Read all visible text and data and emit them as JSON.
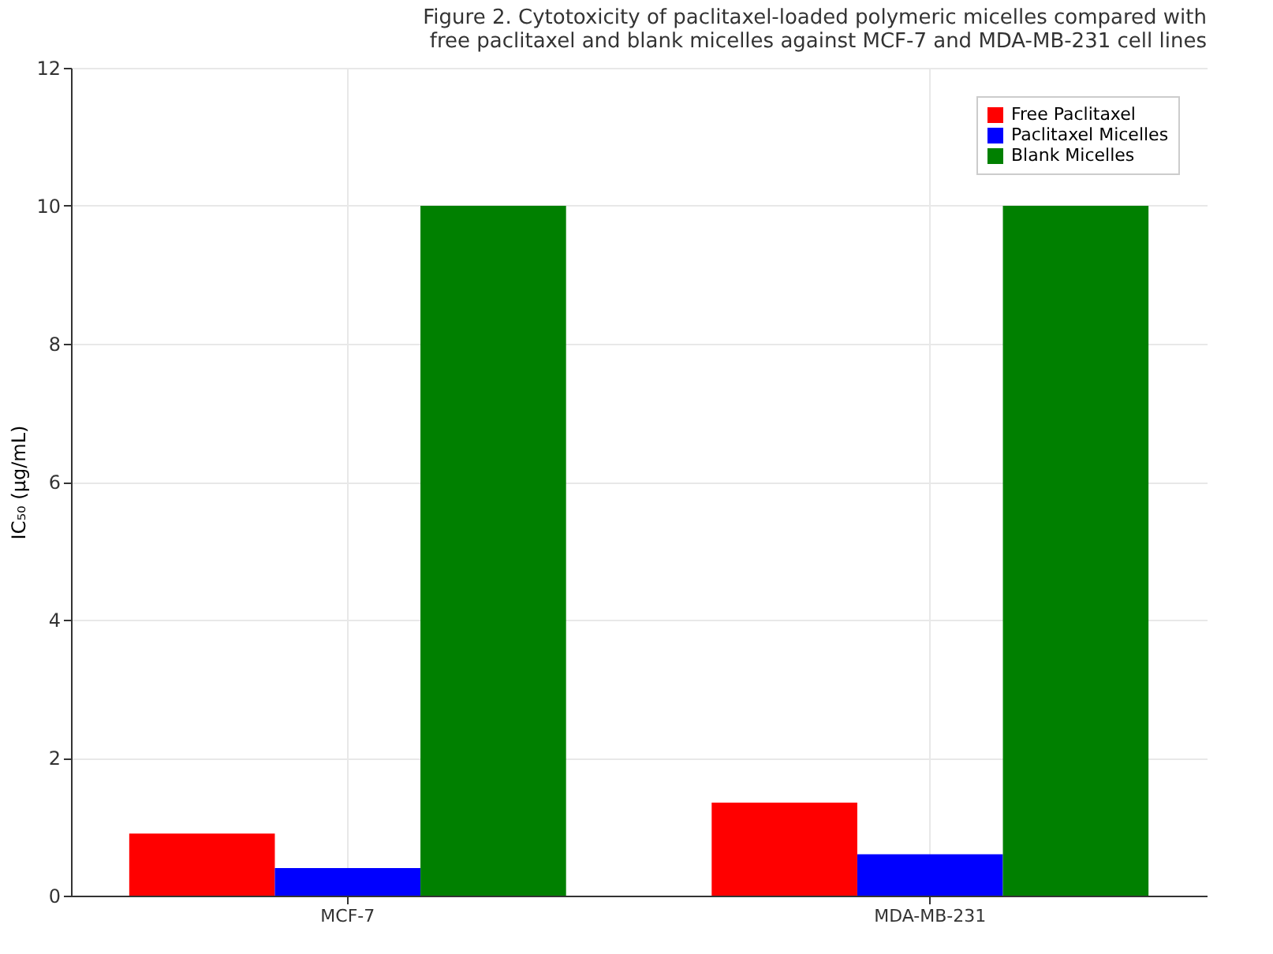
{
  "chart_data": {
    "type": "bar",
    "title": [
      "Figure 2. Cytotoxicity of paclitaxel-loaded polymeric micelles compared with",
      "free paclitaxel and blank micelles against MCF-7 and MDA-MB-231 cell lines"
    ],
    "ylabel": "IC₅₀ (µg/mL)",
    "categories": [
      "MCF-7",
      "MDA-MB-231"
    ],
    "series": [
      {
        "name": "Free Paclitaxel",
        "color": "#ff0000",
        "values": [
          0.9,
          1.35
        ]
      },
      {
        "name": "Paclitaxel Micelles",
        "color": "#0000ff",
        "values": [
          0.4,
          0.6
        ]
      },
      {
        "name": "Blank Micelles",
        "color": "#008000",
        "values": [
          10,
          10
        ]
      }
    ],
    "ylim": [
      0,
      12
    ],
    "yticks": [
      0,
      2,
      4,
      6,
      8,
      10,
      12
    ],
    "grid": true,
    "legend": "top right"
  }
}
